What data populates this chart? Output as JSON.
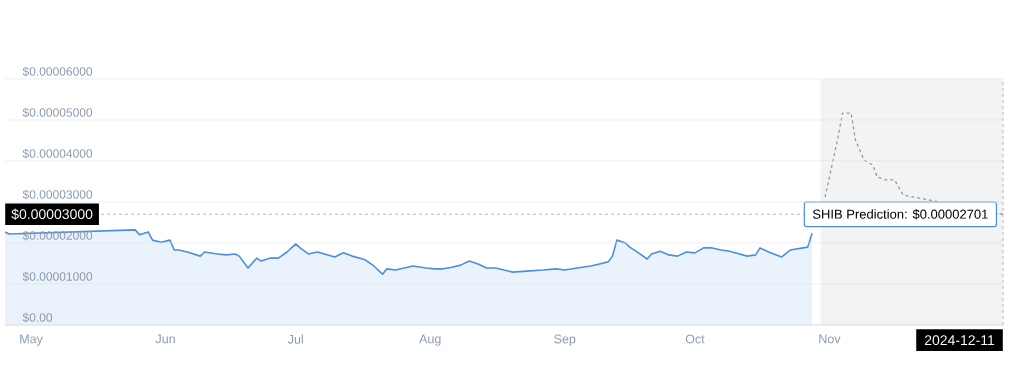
{
  "chart_data": {
    "type": "area",
    "xlim": [
      "2024-04-25",
      "2024-12-11"
    ],
    "ylim": [
      0,
      6e-05
    ],
    "xticks": [
      {
        "value": "2024-05-01",
        "label": "May"
      },
      {
        "value": "2024-06-01",
        "label": "Jun"
      },
      {
        "value": "2024-07-01",
        "label": "Jul"
      },
      {
        "value": "2024-08-01",
        "label": "Aug"
      },
      {
        "value": "2024-09-01",
        "label": "Sep"
      },
      {
        "value": "2024-10-01",
        "label": "Oct"
      },
      {
        "value": "2024-11-01",
        "label": "Nov"
      }
    ],
    "yticks": [
      {
        "value": 0,
        "label": "$0.00"
      },
      {
        "value": 1e-05,
        "label": "$0.00001000"
      },
      {
        "value": 2e-05,
        "label": "$0.00002000"
      },
      {
        "value": 3e-05,
        "label": "$0.00003000"
      },
      {
        "value": 4e-05,
        "label": "$0.00004000"
      },
      {
        "value": 5e-05,
        "label": "$0.00005000"
      },
      {
        "value": 6e-05,
        "label": "$0.00006000"
      }
    ],
    "grid": "y",
    "marker": "none",
    "series": [
      {
        "color": "#4a8fe0",
        "line_style": "solid",
        "x": [
          "2024-04-25",
          "2024-04-26",
          "2024-05-25",
          "2024-05-26",
          "2024-05-28",
          "2024-05-29",
          "2024-05-31",
          "2024-06-02",
          "2024-06-03",
          "2024-06-04",
          "2024-06-06",
          "2024-06-09",
          "2024-06-10",
          "2024-06-13",
          "2024-06-15",
          "2024-06-17",
          "2024-06-18",
          "2024-06-20",
          "2024-06-22",
          "2024-06-23",
          "2024-06-25",
          "2024-06-27",
          "2024-06-29",
          "2024-07-01",
          "2024-07-02",
          "2024-07-04",
          "2024-07-06",
          "2024-07-10",
          "2024-07-12",
          "2024-07-14",
          "2024-07-17",
          "2024-07-19",
          "2024-07-21",
          "2024-07-22",
          "2024-07-24",
          "2024-07-26",
          "2024-07-28",
          "2024-07-31",
          "2024-08-02",
          "2024-08-04",
          "2024-08-06",
          "2024-08-08",
          "2024-08-10",
          "2024-08-12",
          "2024-08-14",
          "2024-08-16",
          "2024-08-18",
          "2024-08-20",
          "2024-08-24",
          "2024-08-27",
          "2024-08-30",
          "2024-09-01",
          "2024-09-05",
          "2024-09-07",
          "2024-09-09",
          "2024-09-11",
          "2024-09-12",
          "2024-09-13",
          "2024-09-15",
          "2024-09-16",
          "2024-09-18",
          "2024-09-20",
          "2024-09-21",
          "2024-09-23",
          "2024-09-25",
          "2024-09-27",
          "2024-09-29",
          "2024-10-01",
          "2024-10-03",
          "2024-10-05",
          "2024-10-07",
          "2024-10-09",
          "2024-10-13",
          "2024-10-15",
          "2024-10-16",
          "2024-10-18",
          "2024-10-21",
          "2024-10-23",
          "2024-10-27",
          "2024-10-28"
        ],
        "values": [
          2.27e-05,
          2.22e-05,
          2.32e-05,
          2.2e-05,
          2.27e-05,
          2.07e-05,
          2.02e-05,
          2.07e-05,
          1.83e-05,
          1.83e-05,
          1.78e-05,
          1.68e-05,
          1.78e-05,
          1.73e-05,
          1.71e-05,
          1.73e-05,
          1.68e-05,
          1.39e-05,
          1.63e-05,
          1.56e-05,
          1.63e-05,
          1.63e-05,
          1.78e-05,
          1.98e-05,
          1.88e-05,
          1.73e-05,
          1.78e-05,
          1.66e-05,
          1.76e-05,
          1.68e-05,
          1.59e-05,
          1.44e-05,
          1.24e-05,
          1.37e-05,
          1.34e-05,
          1.39e-05,
          1.44e-05,
          1.39e-05,
          1.37e-05,
          1.37e-05,
          1.41e-05,
          1.46e-05,
          1.56e-05,
          1.49e-05,
          1.39e-05,
          1.39e-05,
          1.34e-05,
          1.29e-05,
          1.32e-05,
          1.34e-05,
          1.37e-05,
          1.34e-05,
          1.41e-05,
          1.44e-05,
          1.49e-05,
          1.54e-05,
          1.68e-05,
          2.07e-05,
          2e-05,
          1.9e-05,
          1.76e-05,
          1.61e-05,
          1.73e-05,
          1.8e-05,
          1.71e-05,
          1.68e-05,
          1.78e-05,
          1.76e-05,
          1.88e-05,
          1.88e-05,
          1.83e-05,
          1.8e-05,
          1.68e-05,
          1.71e-05,
          1.88e-05,
          1.78e-05,
          1.66e-05,
          1.83e-05,
          1.9e-05,
          2.24e-05
        ]
      },
      {
        "type": "line",
        "color": "#999999",
        "line_style": "dashed",
        "x": [
          "2024-10-31",
          "2024-11-03",
          "2024-11-04",
          "2024-11-06",
          "2024-11-07",
          "2024-11-09",
          "2024-11-11",
          "2024-11-12",
          "2024-11-14",
          "2024-11-16",
          "2024-11-18",
          "2024-12-11"
        ],
        "values": [
          3.12e-05,
          4.59e-05,
          5.17e-05,
          5.17e-05,
          4.51e-05,
          4.02e-05,
          3.9e-05,
          3.61e-05,
          3.54e-05,
          3.54e-05,
          3.17e-05,
          2.701e-05
        ]
      }
    ],
    "bands": [
      {
        "axis": "x",
        "from": "2024-10-30",
        "to": "2024-12-11",
        "color": "#f3f3f3"
      }
    ],
    "ref_lines": [
      {
        "axis": "y",
        "value": 2.701e-05,
        "color": "#999999",
        "line_style": "dashed"
      },
      {
        "axis": "x",
        "value": "2024-12-11",
        "label": "2024-12-11",
        "color": "#999999",
        "line_style": "dashed"
      }
    ],
    "annotations": [
      {
        "text": "SHIB Prediction: $0.00002701",
        "x": "2024-12-11",
        "y": 2.701e-05
      },
      "$0.00003000"
    ]
  }
}
